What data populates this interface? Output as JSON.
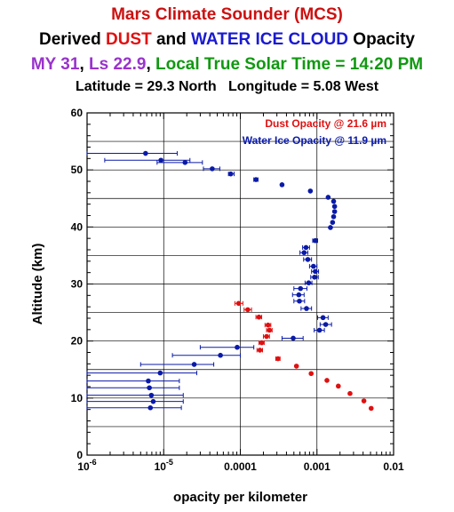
{
  "header": {
    "line1": "Mars Climate Sounder (MCS)",
    "line2_prefix": "Derived ",
    "line2_dust": "DUST",
    "line2_mid": " and ",
    "line2_ice": "WATER ICE CLOUD",
    "line2_suffix": " Opacity",
    "line3_my": "MY 31",
    "line3_sep1": ", ",
    "line3_ls": "Ls 22.9",
    "line3_sep2": ", ",
    "line3_time": "Local True Solar Time = 14:20 PM",
    "line4": "Latitude = 29.3 North   Longitude = 5.08 West"
  },
  "colors": {
    "title": "#cc1111",
    "dust": "#e01010",
    "ice": "#0a1aa8",
    "my_ls": "#9933cc",
    "time": "#119911"
  },
  "chart_data": {
    "type": "scatter",
    "xscale": "log",
    "xlim": [
      1e-06,
      0.01
    ],
    "ylim": [
      0,
      60
    ],
    "xlabel": "opacity per kilometer",
    "ylabel": "Altitude (km)",
    "x_ticks": [
      {
        "base": "10",
        "exp": "-6"
      },
      {
        "base": "10",
        "exp": "-5"
      },
      {
        "text": "0.0001"
      },
      {
        "text": "0.001"
      },
      {
        "text": "0.01"
      }
    ],
    "y_ticks": [
      "0",
      "10",
      "20",
      "30",
      "40",
      "50",
      "60"
    ],
    "grid": true,
    "legend": "top-right",
    "series": [
      {
        "name": "Dust Opacity @ 21.6 µm",
        "color": "#e01010",
        "points": [
          {
            "x": 9.5e-05,
            "y": 26.6,
            "xerr": [
              8.5e-05,
              0.000108
            ]
          },
          {
            "x": 0.000125,
            "y": 25.5,
            "xerr": [
              0.000112,
              0.00014
            ]
          },
          {
            "x": 0.000175,
            "y": 24.2,
            "xerr": [
              0.00016,
              0.00019
            ]
          },
          {
            "x": 0.00023,
            "y": 22.8,
            "xerr": [
              0.00021,
              0.00025
            ]
          },
          {
            "x": 0.00024,
            "y": 21.9,
            "xerr": [
              0.00022,
              0.00026
            ]
          },
          {
            "x": 0.00022,
            "y": 20.8,
            "xerr": [
              0.0002,
              0.00024
            ]
          },
          {
            "x": 0.00019,
            "y": 19.7,
            "xerr": [
              0.000175,
              0.000205
            ]
          },
          {
            "x": 0.00018,
            "y": 18.4,
            "xerr": [
              0.000165,
              0.000195
            ]
          },
          {
            "x": 0.00031,
            "y": 16.9,
            "xerr": [
              0.00029,
              0.00033
            ]
          },
          {
            "x": 0.00054,
            "y": 15.6
          },
          {
            "x": 0.00084,
            "y": 14.3
          },
          {
            "x": 0.00135,
            "y": 13.1
          },
          {
            "x": 0.0019,
            "y": 12.1
          },
          {
            "x": 0.0027,
            "y": 10.8
          },
          {
            "x": 0.0041,
            "y": 9.5
          },
          {
            "x": 0.0051,
            "y": 8.2
          }
        ]
      },
      {
        "name": "Water Ice Opacity @ 11.9 µm",
        "color": "#0a1aa8",
        "points": [
          {
            "x": 5.8e-06,
            "y": 52.9,
            "xerr": [
              1e-06,
              1.5e-05
            ]
          },
          {
            "x": 9.2e-06,
            "y": 51.7,
            "xerr": [
              1.7e-06,
              2.2e-05
            ]
          },
          {
            "x": 1.9e-05,
            "y": 51.3,
            "xerr": [
              8.2e-06,
              3.2e-05
            ]
          },
          {
            "x": 4.3e-05,
            "y": 50.2,
            "xerr": [
              3.3e-05,
              5.4e-05
            ]
          },
          {
            "x": 7.5e-05,
            "y": 49.3,
            "xerr": [
              7e-05,
              8.3e-05
            ]
          },
          {
            "x": 0.00016,
            "y": 48.3,
            "xerr": [
              0.00015,
              0.00017
            ]
          },
          {
            "x": 0.00035,
            "y": 47.4
          },
          {
            "x": 0.00082,
            "y": 46.3
          },
          {
            "x": 0.0014,
            "y": 45.2
          },
          {
            "x": 0.00165,
            "y": 44.5
          },
          {
            "x": 0.0017,
            "y": 43.6
          },
          {
            "x": 0.0017,
            "y": 42.7
          },
          {
            "x": 0.00165,
            "y": 41.8
          },
          {
            "x": 0.0016,
            "y": 40.8
          },
          {
            "x": 0.0015,
            "y": 39.9
          },
          {
            "x": 0.00095,
            "y": 37.6,
            "xerr": [
              0.00088,
              0.00102
            ]
          },
          {
            "x": 0.00072,
            "y": 36.4,
            "xerr": [
              0.00065,
              0.0008
            ]
          },
          {
            "x": 0.00068,
            "y": 35.5,
            "xerr": [
              0.0006,
              0.00076
            ]
          },
          {
            "x": 0.00076,
            "y": 34.3,
            "xerr": [
              0.00067,
              0.00085
            ]
          },
          {
            "x": 0.0009,
            "y": 33.1,
            "xerr": [
              0.0008,
              0.001
            ]
          },
          {
            "x": 0.00095,
            "y": 32.2,
            "xerr": [
              0.00085,
              0.00105
            ]
          },
          {
            "x": 0.00093,
            "y": 31.2,
            "xerr": [
              0.00083,
              0.00104
            ]
          },
          {
            "x": 0.00078,
            "y": 30.2,
            "xerr": [
              0.0007,
              0.00086
            ]
          },
          {
            "x": 0.00061,
            "y": 29.2,
            "xerr": [
              0.0005,
              0.00074
            ]
          },
          {
            "x": 0.00058,
            "y": 28.1,
            "xerr": [
              0.00048,
              0.00068
            ]
          },
          {
            "x": 0.00059,
            "y": 27.0,
            "xerr": [
              0.0005,
              0.00069
            ]
          },
          {
            "x": 0.00073,
            "y": 25.7,
            "xerr": [
              0.00062,
              0.00085
            ]
          },
          {
            "x": 0.0012,
            "y": 24.1,
            "xerr": [
              0.00102,
              0.0014
            ]
          },
          {
            "x": 0.0013,
            "y": 22.9,
            "xerr": [
              0.0011,
              0.00155
            ]
          },
          {
            "x": 0.00108,
            "y": 21.9,
            "xerr": [
              0.00092,
              0.00125
            ]
          },
          {
            "x": 0.00049,
            "y": 20.5,
            "xerr": [
              0.00035,
              0.00066
            ]
          },
          {
            "x": 9.1e-05,
            "y": 18.9,
            "xerr": [
              3e-05,
              0.00015
            ]
          },
          {
            "x": 5.5e-05,
            "y": 17.5,
            "xerr": [
              1.3e-05,
              0.0001
            ]
          },
          {
            "x": 2.5e-05,
            "y": 15.9,
            "xerr": [
              5e-06,
              4.5e-05
            ]
          },
          {
            "x": 9e-06,
            "y": 14.4,
            "xerr": [
              1e-06,
              2.7e-05
            ]
          },
          {
            "x": 6.3e-06,
            "y": 13.0,
            "xerr": [
              1e-06,
              1.6e-05
            ]
          },
          {
            "x": 6.5e-06,
            "y": 11.8,
            "xerr": [
              1e-06,
              1.6e-05
            ]
          },
          {
            "x": 6.9e-06,
            "y": 10.5,
            "xerr": [
              1e-06,
              1.8e-05
            ]
          },
          {
            "x": 7.3e-06,
            "y": 9.4,
            "xerr": [
              1e-06,
              1.8e-05
            ]
          },
          {
            "x": 6.7e-06,
            "y": 8.3,
            "xerr": [
              1e-06,
              1.7e-05
            ]
          }
        ]
      }
    ]
  }
}
